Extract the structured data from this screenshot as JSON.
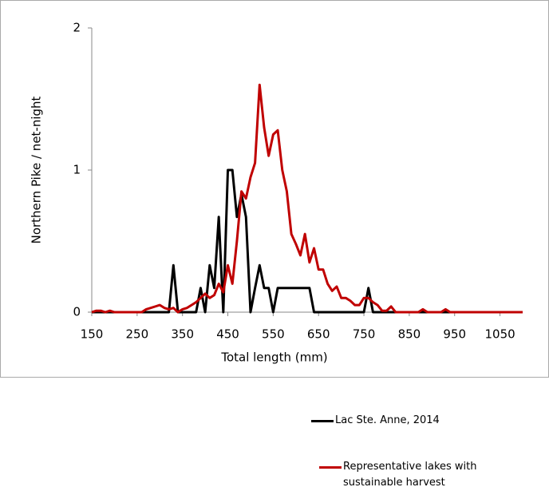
{
  "chart_data": {
    "type": "line",
    "xlabel": "Total length (mm)",
    "ylabel": "Northern Pike / net-night",
    "x": [
      150,
      160,
      170,
      180,
      190,
      200,
      210,
      220,
      230,
      240,
      250,
      260,
      270,
      280,
      290,
      300,
      310,
      320,
      330,
      340,
      350,
      360,
      370,
      380,
      390,
      400,
      410,
      420,
      430,
      440,
      450,
      460,
      470,
      480,
      490,
      500,
      510,
      520,
      530,
      540,
      550,
      560,
      570,
      580,
      590,
      600,
      610,
      620,
      630,
      640,
      650,
      660,
      670,
      680,
      690,
      700,
      710,
      720,
      730,
      740,
      750,
      760,
      770,
      780,
      790,
      800,
      810,
      820,
      830,
      840,
      850,
      860,
      870,
      880,
      890,
      900,
      910,
      920,
      930,
      940,
      950,
      960,
      970,
      980,
      990,
      1000,
      1010,
      1020,
      1030,
      1040,
      1050,
      1060,
      1070,
      1080,
      1090,
      1100
    ],
    "series": [
      {
        "name": "Lac Ste. Anne, 2014",
        "color": "#000000",
        "values": [
          0,
          0,
          0,
          0,
          0,
          0,
          0,
          0,
          0,
          0,
          0,
          0,
          0,
          0,
          0,
          0,
          0,
          0,
          0.33,
          0,
          0,
          0,
          0,
          0,
          0.17,
          0,
          0.33,
          0.17,
          0.67,
          0,
          1,
          1,
          0.67,
          0.83,
          0.67,
          0,
          0.17,
          0.33,
          0.17,
          0.17,
          0,
          0.17,
          0.17,
          0.17,
          0.17,
          0.17,
          0.17,
          0.17,
          0.17,
          0,
          0,
          0,
          0,
          0,
          0,
          0,
          0,
          0,
          0,
          0,
          0,
          0.17,
          0,
          0,
          0,
          0,
          0,
          0,
          0,
          0,
          0,
          0,
          0,
          0,
          0,
          0,
          0,
          0,
          0,
          0,
          0,
          0,
          0,
          0,
          0,
          0,
          0,
          0,
          0,
          0,
          0,
          0,
          0,
          0,
          0,
          0
        ]
      },
      {
        "name": "Representative lakes with sustainable harvest",
        "color": "#c00000",
        "values": [
          0,
          0.01,
          0.01,
          0,
          0.01,
          0,
          0,
          0,
          0,
          0,
          0,
          0,
          0.02,
          0.03,
          0.04,
          0.05,
          0.03,
          0.02,
          0.03,
          0,
          0.02,
          0.03,
          0.05,
          0.07,
          0.1,
          0.13,
          0.1,
          0.12,
          0.2,
          0.14,
          0.33,
          0.2,
          0.5,
          0.85,
          0.8,
          0.95,
          1.05,
          1.6,
          1.3,
          1.1,
          1.25,
          1.28,
          1.0,
          0.85,
          0.55,
          0.48,
          0.4,
          0.55,
          0.35,
          0.45,
          0.3,
          0.3,
          0.2,
          0.15,
          0.18,
          0.1,
          0.1,
          0.08,
          0.05,
          0.05,
          0.1,
          0.1,
          0.07,
          0.05,
          0.01,
          0.01,
          0.04,
          0,
          0,
          0,
          0,
          0,
          0,
          0.02,
          0,
          0,
          0,
          0,
          0.02,
          0,
          0,
          0,
          0,
          0,
          0,
          0,
          0,
          0,
          0,
          0,
          0,
          0,
          0,
          0,
          0,
          0
        ]
      }
    ],
    "xlim": [
      150,
      1100
    ],
    "xticks": [
      150,
      250,
      350,
      450,
      550,
      650,
      750,
      850,
      950,
      1050
    ],
    "ylim": [
      0,
      2
    ],
    "yticks": [
      0,
      1,
      2
    ],
    "grid": false
  }
}
